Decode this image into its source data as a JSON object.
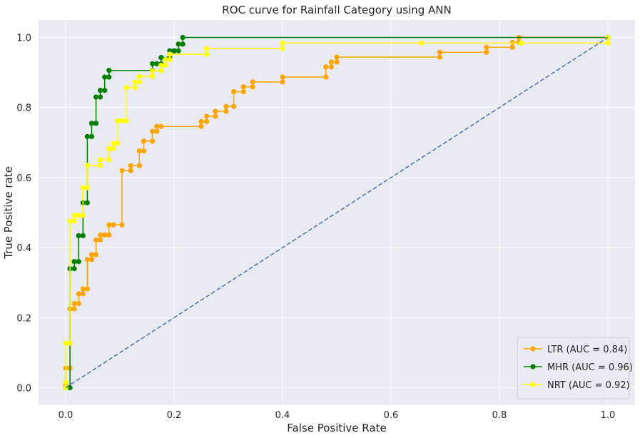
{
  "chart_data": {
    "type": "line",
    "title": "ROC curve for Rainfall Category using ANN",
    "xlabel": "False Positive Rate",
    "ylabel": "True Positive rate",
    "xlim": [
      -0.05,
      1.05
    ],
    "ylim": [
      -0.05,
      1.05
    ],
    "xticks": [
      "0.0",
      "0.2",
      "0.4",
      "0.6",
      "0.8",
      "1.0"
    ],
    "yticks": [
      "0.0",
      "0.2",
      "0.4",
      "0.6",
      "0.8",
      "1.0"
    ],
    "grid": true,
    "legend_position": "lower-right",
    "background_color": "#eaeaf2",
    "series": [
      {
        "name": "LTR (AUC = 0.84)",
        "color": "#ffa500",
        "marker": "circle",
        "x": [
          0,
          0,
          0,
          0.008,
          0.008,
          0.016,
          0.016,
          0.024,
          0.024,
          0.032,
          0.032,
          0.04,
          0.04,
          0.048,
          0.048,
          0.056,
          0.056,
          0.064,
          0.064,
          0.072,
          0.072,
          0.08,
          0.08,
          0.088,
          0.088,
          0.104,
          0.104,
          0.12,
          0.12,
          0.136,
          0.136,
          0.144,
          0.144,
          0.16,
          0.16,
          0.168,
          0.168,
          0.176,
          0.176,
          0.25,
          0.25,
          0.26,
          0.26,
          0.276,
          0.276,
          0.296,
          0.296,
          0.31,
          0.31,
          0.328,
          0.328,
          0.345,
          0.345,
          0.4,
          0.4,
          0.48,
          0.48,
          0.49,
          0.49,
          0.5,
          0.5,
          0.69,
          0.69,
          0.776,
          0.776,
          0.824,
          0.824,
          0.836,
          0.836,
          1
        ],
        "y": [
          0,
          0.01,
          0.056,
          0.056,
          0.225,
          0.225,
          0.24,
          0.24,
          0.268,
          0.268,
          0.282,
          0.282,
          0.366,
          0.366,
          0.38,
          0.38,
          0.422,
          0.422,
          0.436,
          0.436,
          0.436,
          0.436,
          0.465,
          0.465,
          0.465,
          0.465,
          0.62,
          0.62,
          0.634,
          0.634,
          0.676,
          0.676,
          0.704,
          0.704,
          0.732,
          0.732,
          0.746,
          0.746,
          0.746,
          0.746,
          0.76,
          0.76,
          0.775,
          0.775,
          0.789,
          0.789,
          0.803,
          0.803,
          0.845,
          0.845,
          0.859,
          0.859,
          0.873,
          0.873,
          0.887,
          0.887,
          0.916,
          0.916,
          0.93,
          0.93,
          0.944,
          0.944,
          0.958,
          0.958,
          0.972,
          0.972,
          0.986,
          0.986,
          1.0,
          1.0
        ]
      },
      {
        "name": "MHR (AUC = 0.96)",
        "color": "#008000",
        "marker": "circle",
        "x": [
          0,
          0.008,
          0.008,
          0.016,
          0.016,
          0.024,
          0.024,
          0.032,
          0.032,
          0.04,
          0.04,
          0.048,
          0.048,
          0.056,
          0.056,
          0.064,
          0.064,
          0.072,
          0.072,
          0.08,
          0.08,
          0.16,
          0.16,
          0.168,
          0.168,
          0.176,
          0.176,
          0.192,
          0.192,
          0.2,
          0.2,
          0.208,
          0.208,
          0.216,
          0.216,
          1
        ],
        "y": [
          0,
          0,
          0.34,
          0.34,
          0.36,
          0.36,
          0.434,
          0.434,
          0.528,
          0.528,
          0.717,
          0.717,
          0.755,
          0.755,
          0.83,
          0.83,
          0.849,
          0.849,
          0.887,
          0.887,
          0.906,
          0.906,
          0.925,
          0.925,
          0.925,
          0.925,
          0.943,
          0.943,
          0.962,
          0.962,
          0.962,
          0.962,
          0.981,
          0.981,
          1.0,
          1.0
        ]
      },
      {
        "name": "NRT (AUC = 0.92)",
        "color": "#ffff00",
        "marker": "circle",
        "x": [
          0,
          0,
          0,
          0.008,
          0.008,
          0.016,
          0.016,
          0.024,
          0.024,
          0.032,
          0.032,
          0.04,
          0.04,
          0.064,
          0.064,
          0.08,
          0.08,
          0.088,
          0.088,
          0.096,
          0.096,
          0.104,
          0.104,
          0.112,
          0.112,
          0.128,
          0.128,
          0.136,
          0.136,
          0.16,
          0.16,
          0.176,
          0.176,
          0.184,
          0.184,
          0.192,
          0.192,
          0.26,
          0.26,
          0.4,
          0.4,
          0.656,
          0.656,
          0.84,
          0.84,
          1,
          1
        ],
        "y": [
          0,
          0.015,
          0.127,
          0.127,
          0.476,
          0.476,
          0.492,
          0.492,
          0.492,
          0.492,
          0.571,
          0.571,
          0.635,
          0.635,
          0.651,
          0.651,
          0.683,
          0.683,
          0.698,
          0.698,
          0.762,
          0.762,
          0.762,
          0.762,
          0.857,
          0.857,
          0.873,
          0.873,
          0.889,
          0.889,
          0.905,
          0.905,
          0.921,
          0.921,
          0.937,
          0.937,
          0.952,
          0.952,
          0.968,
          0.968,
          0.984,
          0.984,
          0.984,
          0.984,
          0.984,
          0.984,
          1.0
        ]
      },
      {
        "name": "",
        "color": "#4c72b0",
        "style": "dashed",
        "x": [
          0,
          1
        ],
        "y": [
          0,
          1
        ]
      }
    ]
  }
}
